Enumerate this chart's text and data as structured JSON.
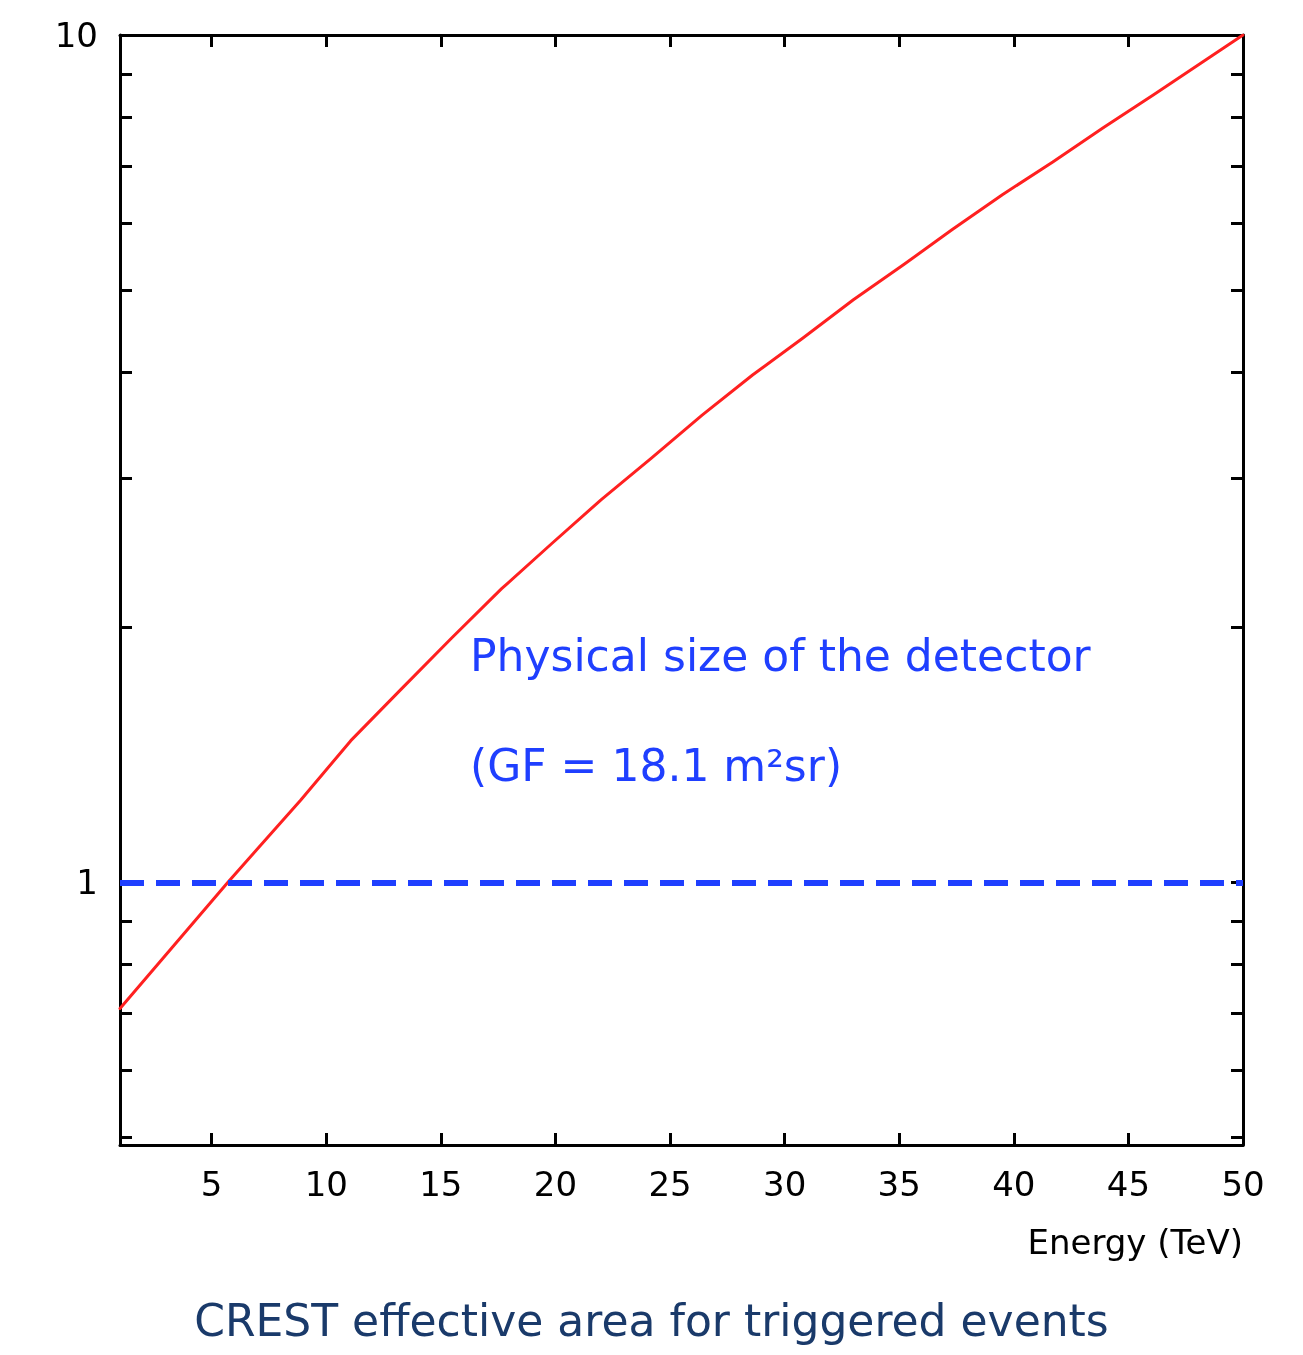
{
  "chart_data": {
    "type": "line",
    "title": "CREST effective area for triggered events",
    "xlabel": "Energy (TeV)",
    "x": [
      1,
      5.7,
      8.88,
      11.07,
      13.26,
      15.45,
      17.64,
      19.83,
      22.0,
      24.2,
      26.4,
      28.6,
      30.8,
      33.0,
      35.2,
      37.3,
      39.5,
      41.7,
      43.9,
      46.1,
      50
    ],
    "series": [
      {
        "color": "#ff2020",
        "values": [
          0.71,
          1.0,
          1.25,
          1.47,
          1.69,
          1.94,
          2.22,
          2.51,
          2.83,
          3.17,
          3.56,
          3.97,
          4.39,
          4.87,
          5.36,
          5.89,
          6.48,
          7.08,
          7.77,
          8.5,
          10
        ]
      }
    ],
    "xlim": [
      1,
      50
    ],
    "ylim": [
      0.49,
      10
    ],
    "log": "y",
    "marker": "none",
    "line_style": "solid",
    "xticks": [
      5,
      10,
      15,
      20,
      25,
      30,
      35,
      40,
      45,
      50
    ],
    "yticks": [
      {
        "value": 0.5,
        "label": null
      },
      {
        "value": 0.6,
        "label": null
      },
      {
        "value": 0.7,
        "label": null
      },
      {
        "value": 0.8,
        "label": null
      },
      {
        "value": 0.9,
        "label": null
      },
      1,
      {
        "value": 2,
        "label": null
      },
      {
        "value": 3,
        "label": null
      },
      {
        "value": 4,
        "label": null
      },
      {
        "value": 5,
        "label": null
      },
      {
        "value": 6,
        "label": null
      },
      {
        "value": 7,
        "label": null
      },
      {
        "value": 8,
        "label": null
      },
      {
        "value": 9,
        "label": null
      },
      10
    ],
    "annotations": [
      "Physical size of the detector\n(GF = 18.1 m²sr)"
    ],
    "ref_lines": [
      {
        "axis": "y",
        "value": 1,
        "color": "#1f3fff",
        "line_style": "dashed"
      }
    ]
  }
}
